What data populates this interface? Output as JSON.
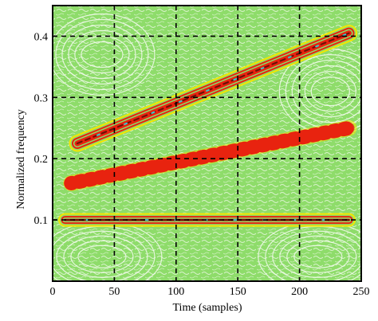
{
  "chart_data": {
    "type": "heatmap",
    "title": "",
    "xlabel": "Time (samples)",
    "ylabel": "Normalized frequency",
    "xlim": [
      0,
      250
    ],
    "ylim": [
      0,
      0.45
    ],
    "x_ticks": [
      0,
      50,
      100,
      150,
      200,
      250
    ],
    "y_ticks": [
      0.1,
      0.2,
      0.3,
      0.4
    ],
    "x_tick_labels": [
      "0",
      "50",
      "100",
      "150",
      "200",
      "250"
    ],
    "y_tick_labels": [
      "0.1",
      "0.2",
      "0.3",
      "0.4"
    ],
    "grid": true,
    "grid_style": "dashed",
    "colors": {
      "background": "#8edc6a",
      "low_contour": "#f4fbef",
      "mid_contour": "#f2e600",
      "high_contour": "#e8230f",
      "peak_contour": "#3cc8d0",
      "dark_ridge": "#6b1208"
    },
    "series": [
      {
        "component": "linear-chirp-upper",
        "x": [
          20,
          240
        ],
        "y": [
          0.225,
          0.405
        ]
      },
      {
        "component": "linear-chirp-lower",
        "x": [
          15,
          240
        ],
        "y": [
          0.16,
          0.25
        ]
      },
      {
        "component": "constant-tone",
        "x": [
          10,
          240
        ],
        "y": [
          0.1,
          0.1
        ]
      }
    ]
  }
}
